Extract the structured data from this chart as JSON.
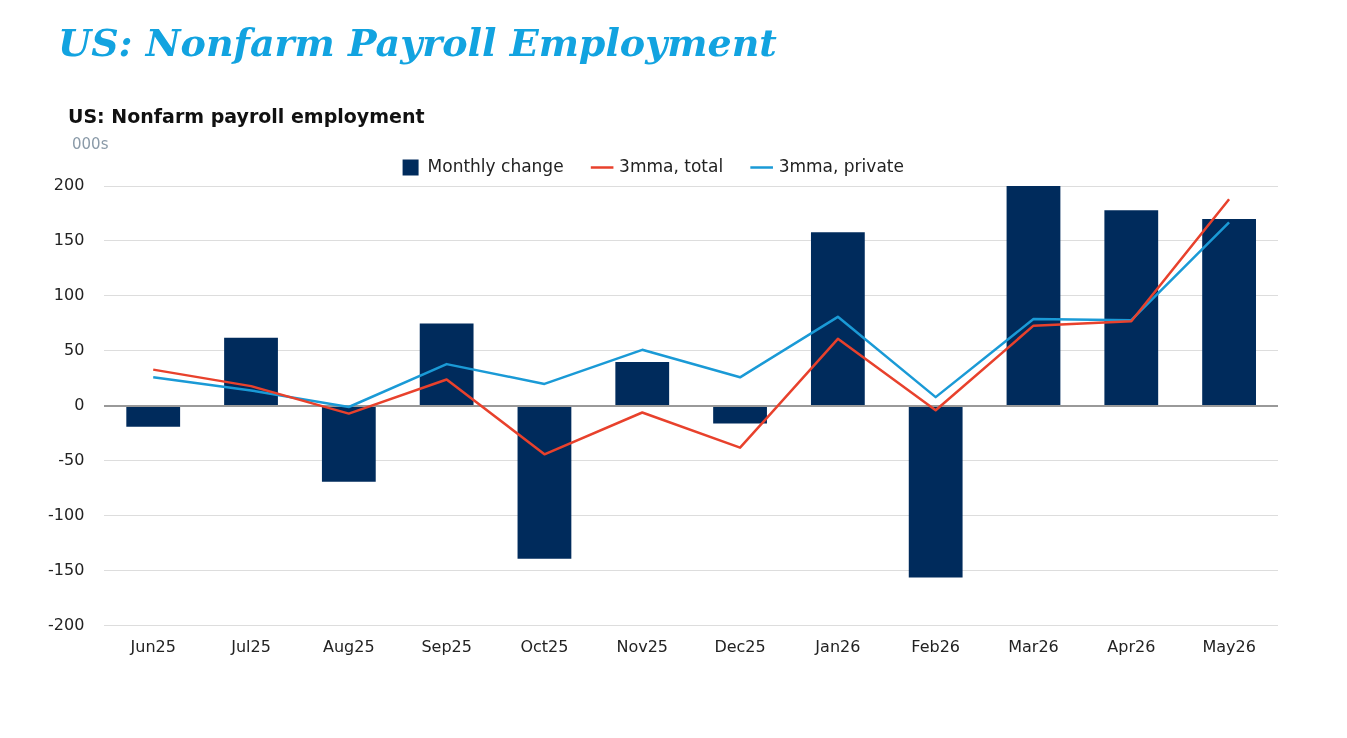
{
  "chart_data": {
    "type": "bar",
    "title": "US: Nonfarm Payroll Employment",
    "subtitle": "US: Nonfarm payroll employment",
    "ylabel": "000s",
    "categories": [
      "Jun25",
      "Jul25",
      "Aug25",
      "Sep25",
      "Oct25",
      "Nov25",
      "Dec25",
      "Jan26",
      "Feb26",
      "Mar26",
      "Apr26",
      "May26"
    ],
    "series": [
      {
        "name": "Monthly change",
        "color": "#002b5c",
        "values": [
          -19,
          62,
          -69,
          75,
          -139,
          40,
          -16,
          158,
          -156,
          200,
          178,
          170
        ]
      },
      {
        "name": "3mma, total",
        "type": "line",
        "color": "#e8412c",
        "values": [
          33,
          18,
          -7,
          24,
          -44,
          -6,
          -38,
          61,
          -4,
          73,
          77,
          188
        ]
      },
      {
        "name": "3mma, private",
        "type": "line",
        "color": "#1a9ad6",
        "values": [
          26,
          14,
          -1,
          38,
          20,
          51,
          26,
          81,
          8,
          79,
          78,
          167
        ]
      }
    ],
    "ylim": [
      -200,
      200
    ],
    "yticks": [
      -200,
      -150,
      -100,
      -50,
      0,
      50,
      100,
      150,
      200
    ],
    "grid": "y",
    "legend": "top"
  }
}
